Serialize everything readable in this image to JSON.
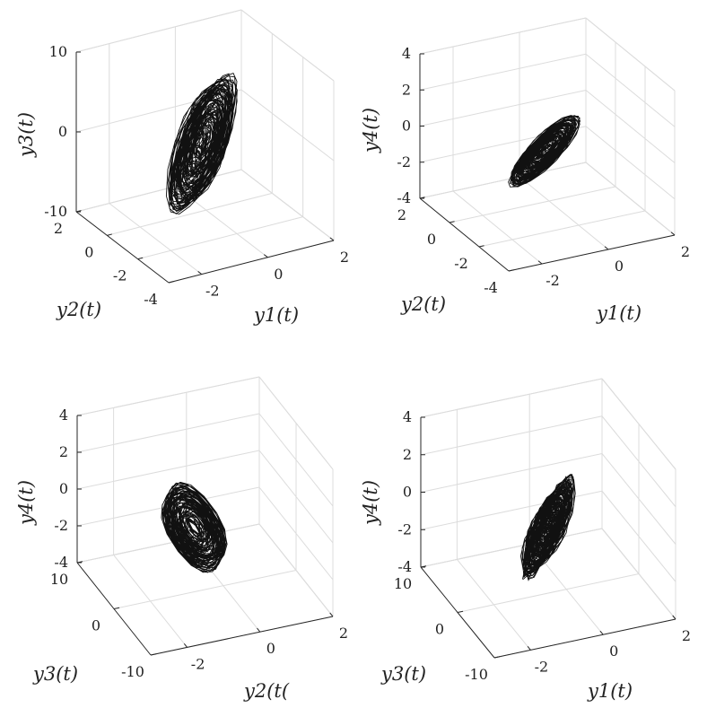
{
  "chart_data": [
    {
      "type": "line3d",
      "title": "",
      "x": {
        "label": "y1(t)",
        "range": [
          -3,
          2
        ],
        "ticks": [
          -2,
          0,
          2
        ],
        "tick_labels": [
          "-2",
          "0",
          "2"
        ]
      },
      "y": {
        "label": "y2(t)",
        "range": [
          -4,
          2
        ],
        "ticks": [
          2,
          0,
          -2,
          -4
        ],
        "tick_labels": [
          "2",
          "0",
          "-2",
          "-4"
        ]
      },
      "z": {
        "label": "y3(t)",
        "range": [
          -10,
          10
        ],
        "ticks": [
          10,
          0,
          -10
        ],
        "tick_labels": [
          "10",
          "0",
          "-10"
        ]
      },
      "series": [
        {
          "name": "trajectory",
          "x_var": "y1",
          "y_var": "y2",
          "z_var": "y3",
          "color": "#111111"
        }
      ],
      "grid": true
    },
    {
      "type": "line3d",
      "title": "",
      "x": {
        "label": "y1(t)",
        "range": [
          -3,
          2
        ],
        "ticks": [
          -2,
          0,
          2
        ],
        "tick_labels": [
          "-2",
          "0",
          "2"
        ]
      },
      "y": {
        "label": "y2(t)",
        "range": [
          -4,
          2
        ],
        "ticks": [
          2,
          0,
          -2,
          -4
        ],
        "tick_labels": [
          "2",
          "0",
          "-2",
          "-4"
        ]
      },
      "z": {
        "label": "y4(t)",
        "range": [
          -4,
          4
        ],
        "ticks": [
          4,
          2,
          0,
          -2,
          -4
        ],
        "tick_labels": [
          "4",
          "2",
          "0",
          "-2",
          "-4"
        ]
      },
      "series": [
        {
          "name": "trajectory",
          "x_var": "y1",
          "y_var": "y2",
          "z_var": "y4",
          "color": "#111111"
        }
      ],
      "grid": true
    },
    {
      "type": "line3d",
      "title": "",
      "x": {
        "label": "y2(t(",
        "range": [
          -3,
          2
        ],
        "ticks": [
          -2,
          0,
          2
        ],
        "tick_labels": [
          "-2",
          "0",
          "2"
        ]
      },
      "y": {
        "label": "y3(t)",
        "range": [
          -10,
          10
        ],
        "ticks": [
          10,
          0,
          -10
        ],
        "tick_labels": [
          "10",
          "0",
          "-10"
        ]
      },
      "z": {
        "label": "y4(t)",
        "range": [
          -4,
          4
        ],
        "ticks": [
          4,
          2,
          0,
          -2,
          -4
        ],
        "tick_labels": [
          "4",
          "2",
          "0",
          "-2",
          "-4"
        ]
      },
      "series": [
        {
          "name": "trajectory",
          "x_var": "y2",
          "y_var": "y3",
          "z_var": "y4",
          "color": "#111111"
        }
      ],
      "grid": true
    },
    {
      "type": "line3d",
      "title": "",
      "x": {
        "label": "y1(t)",
        "range": [
          -3,
          2
        ],
        "ticks": [
          -2,
          0,
          2
        ],
        "tick_labels": [
          "-2",
          "0",
          "2"
        ]
      },
      "y": {
        "label": "y3(t)",
        "range": [
          -10,
          10
        ],
        "ticks": [
          10,
          0,
          -10
        ],
        "tick_labels": [
          "10",
          "0",
          "-10"
        ]
      },
      "z": {
        "label": "y4(t)",
        "range": [
          -4,
          4
        ],
        "ticks": [
          4,
          2,
          0,
          -2,
          -4
        ],
        "tick_labels": [
          "4",
          "2",
          "0",
          "-2",
          "-4"
        ]
      },
      "series": [
        {
          "name": "trajectory",
          "x_var": "y1",
          "y_var": "y3",
          "z_var": "y4",
          "color": "#111111"
        }
      ],
      "grid": true
    }
  ]
}
